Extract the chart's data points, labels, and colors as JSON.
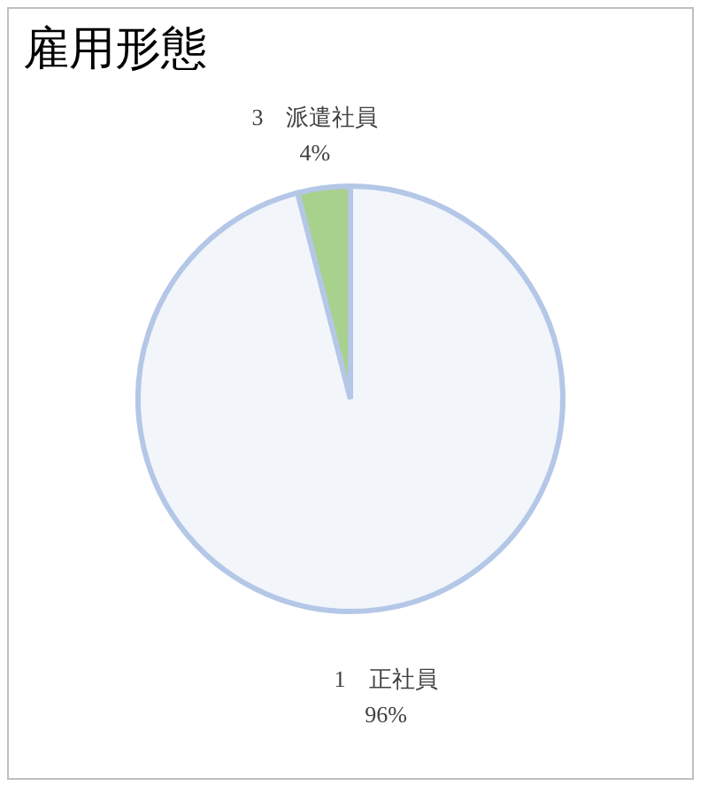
{
  "chart_data": {
    "type": "pie",
    "title": "雇用形態",
    "categories": [
      "1　正社員",
      "3　派遣社員"
    ],
    "values": [
      96,
      4
    ],
    "colors": [
      "#f2f5fa",
      "#a9d18e"
    ],
    "value_labels": [
      "96%",
      "4%"
    ],
    "legend": false
  }
}
